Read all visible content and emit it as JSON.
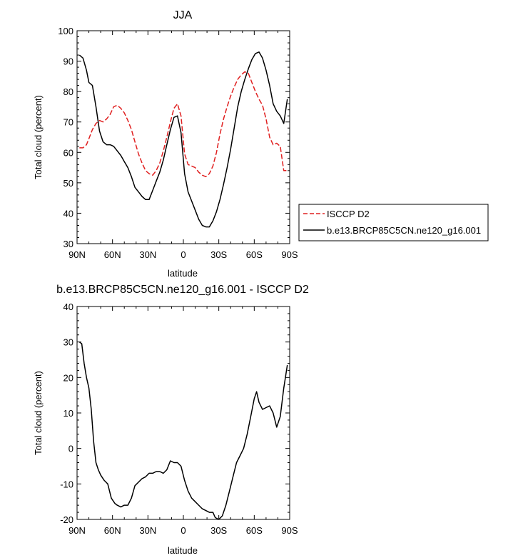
{
  "chart_data": [
    {
      "type": "line",
      "title": "JJA",
      "xlabel": "latitude",
      "ylabel": "Total cloud (percent)",
      "xlim": [
        90,
        -90
      ],
      "ylim": [
        30,
        100
      ],
      "xticks": [
        {
          "value": 90,
          "label": "90N"
        },
        {
          "value": 60,
          "label": "60N"
        },
        {
          "value": 30,
          "label": "30N"
        },
        {
          "value": 0,
          "label": "0"
        },
        {
          "value": -30,
          "label": "30S"
        },
        {
          "value": -60,
          "label": "60S"
        },
        {
          "value": -90,
          "label": "90S"
        }
      ],
      "yticks": [
        30,
        40,
        50,
        60,
        70,
        80,
        90,
        100
      ],
      "legend_position": "right",
      "series": [
        {
          "name": "ISCCP D2",
          "color": "#e02020",
          "dash": true,
          "x": [
            88,
            85,
            82,
            80,
            77,
            74,
            71,
            68,
            65,
            62,
            59,
            56,
            53,
            50,
            47,
            44,
            41,
            38,
            35,
            32,
            29,
            26,
            23,
            20,
            17,
            14,
            11,
            8,
            5,
            2,
            -1,
            -4,
            -7,
            -10,
            -13,
            -16,
            -19,
            -22,
            -25,
            -28,
            -31,
            -34,
            -37,
            -40,
            -43,
            -46,
            -49,
            -52,
            -55,
            -58,
            -61,
            -64,
            -67,
            -70,
            -73,
            -76,
            -79,
            -82,
            -85,
            -88
          ],
          "y": [
            61.5,
            61.5,
            62.5,
            64.5,
            67.5,
            69.5,
            70.5,
            70,
            71,
            72.5,
            75,
            75.5,
            74.5,
            73,
            70.5,
            67.5,
            63.5,
            59.5,
            56.5,
            54,
            53,
            52.5,
            54,
            56.5,
            60.5,
            65,
            70,
            74.5,
            76,
            72,
            59.5,
            56,
            55.5,
            55,
            53.5,
            52.5,
            52,
            53,
            55.5,
            60,
            66,
            71,
            75,
            78.5,
            81.5,
            84,
            85.5,
            86.5,
            86,
            83,
            80,
            77.5,
            75.5,
            71,
            65,
            62.5,
            63,
            62,
            54,
            54
          ]
        },
        {
          "name": "b.e13.BRCP85C5CN.ne120_g16.001",
          "color": "#000000",
          "dash": false,
          "x": [
            88,
            85,
            82,
            80,
            77,
            74,
            71,
            68,
            65,
            62,
            59,
            56,
            53,
            50,
            47,
            44,
            41,
            38,
            35,
            32,
            29,
            26,
            23,
            20,
            17,
            14,
            11,
            8,
            5,
            2,
            -1,
            -4,
            -7,
            -10,
            -13,
            -16,
            -19,
            -22,
            -25,
            -28,
            -31,
            -34,
            -37,
            -40,
            -43,
            -46,
            -49,
            -52,
            -55,
            -58,
            -61,
            -64,
            -67,
            -70,
            -73,
            -76,
            -79,
            -82,
            -85,
            -88
          ],
          "y": [
            92,
            91,
            87,
            83,
            82,
            75,
            67,
            63.5,
            62.5,
            62.5,
            62,
            60.5,
            59,
            57,
            55,
            52,
            48.5,
            47,
            45.5,
            44.5,
            44.5,
            47.5,
            50.5,
            53.5,
            57.5,
            62.5,
            67.5,
            71.5,
            72,
            66.5,
            53,
            47,
            44,
            41,
            38,
            36,
            35.5,
            35.5,
            37.5,
            40.5,
            44.5,
            49.5,
            55,
            61,
            68,
            75,
            80,
            84,
            87.5,
            90.5,
            92.5,
            93,
            91,
            87,
            82,
            76,
            73.5,
            72,
            69.5,
            77.5
          ]
        }
      ]
    },
    {
      "type": "line",
      "title": "b.e13.BRCP85C5CN.ne120_g16.001 - ISCCP D2",
      "xlabel": "latitude",
      "ylabel": "Total cloud (percent)",
      "xlim": [
        90,
        -90
      ],
      "ylim": [
        -20,
        40
      ],
      "xticks": [
        {
          "value": 90,
          "label": "90N"
        },
        {
          "value": 60,
          "label": "60N"
        },
        {
          "value": 30,
          "label": "30N"
        },
        {
          "value": 0,
          "label": "0"
        },
        {
          "value": -30,
          "label": "30S"
        },
        {
          "value": -60,
          "label": "60S"
        },
        {
          "value": -90,
          "label": "90S"
        }
      ],
      "yticks": [
        -20,
        -10,
        0,
        10,
        20,
        30,
        40
      ],
      "series": [
        {
          "color": "#000000",
          "dash": false,
          "x": [
            88,
            86,
            84,
            82,
            80,
            78,
            76,
            74,
            72,
            70,
            67,
            64,
            61,
            58,
            56,
            53,
            50,
            47,
            44,
            41,
            38,
            35,
            32,
            29,
            26,
            23,
            20,
            17,
            14,
            11,
            8,
            5,
            2,
            -1,
            -4,
            -7,
            -10,
            -13,
            -16,
            -19,
            -22,
            -25,
            -27,
            -30,
            -33,
            -36,
            -39,
            -42,
            -45,
            -48,
            -51,
            -54,
            -57,
            -60,
            -62,
            -64,
            -67,
            -70,
            -73,
            -76,
            -79,
            -82,
            -85,
            -88
          ],
          "y": [
            30,
            29.5,
            24,
            20,
            17,
            11,
            2,
            -4,
            -6,
            -7.5,
            -9,
            -10,
            -14,
            -15.5,
            -16,
            -16.5,
            -16,
            -16,
            -14,
            -10.5,
            -9.5,
            -8.5,
            -8,
            -7,
            -7,
            -6.5,
            -6.5,
            -7,
            -6,
            -3.5,
            -4,
            -4,
            -5,
            -9,
            -12,
            -14,
            -15,
            -16,
            -17,
            -17.5,
            -18,
            -18,
            -19.5,
            -20,
            -19,
            -16,
            -12,
            -8,
            -4,
            -2,
            0,
            4,
            9,
            14,
            16,
            13,
            11,
            11.5,
            12,
            10,
            6,
            9,
            17,
            23.5
          ]
        }
      ]
    }
  ]
}
